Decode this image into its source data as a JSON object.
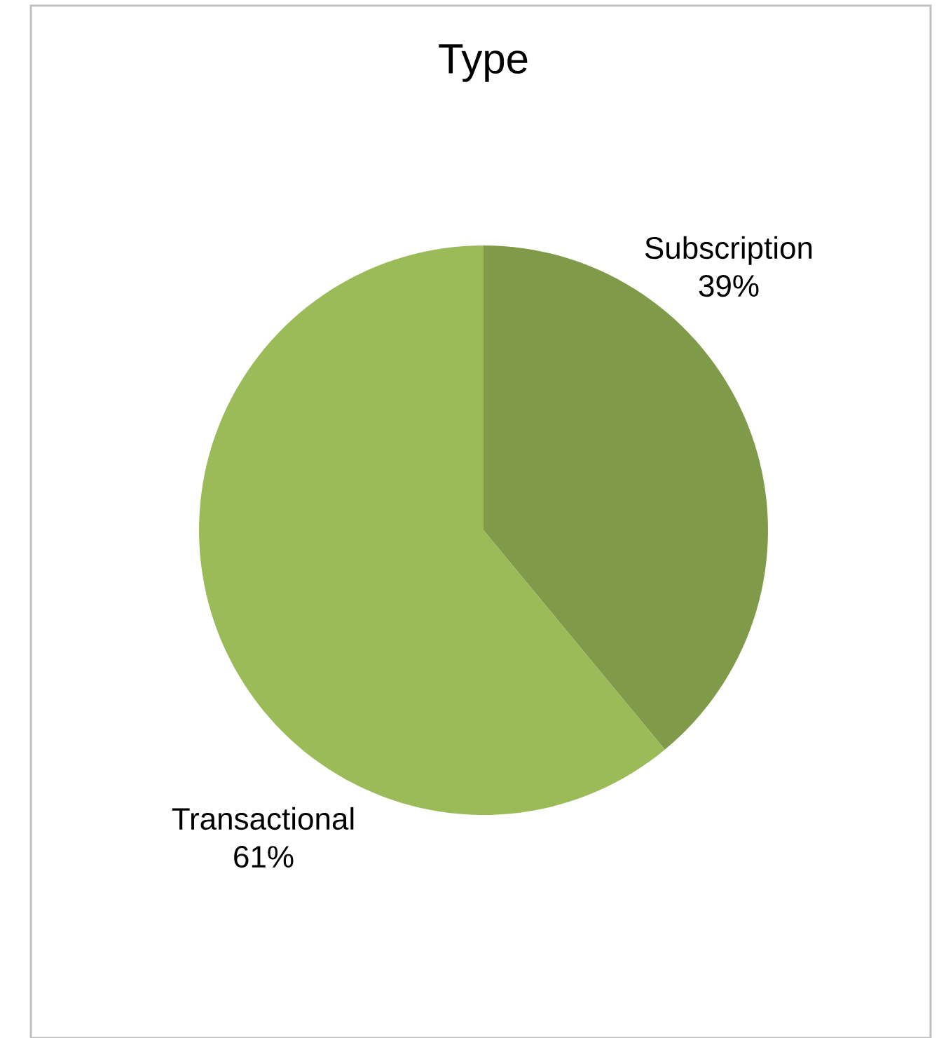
{
  "chart_data": {
    "type": "pie",
    "title": "Type",
    "categories": [
      "Subscription",
      "Transactional"
    ],
    "values": [
      39,
      61
    ],
    "value_labels": [
      "39%",
      "61%"
    ],
    "colors": [
      "#7f9b4a",
      "#9bbb59"
    ]
  }
}
